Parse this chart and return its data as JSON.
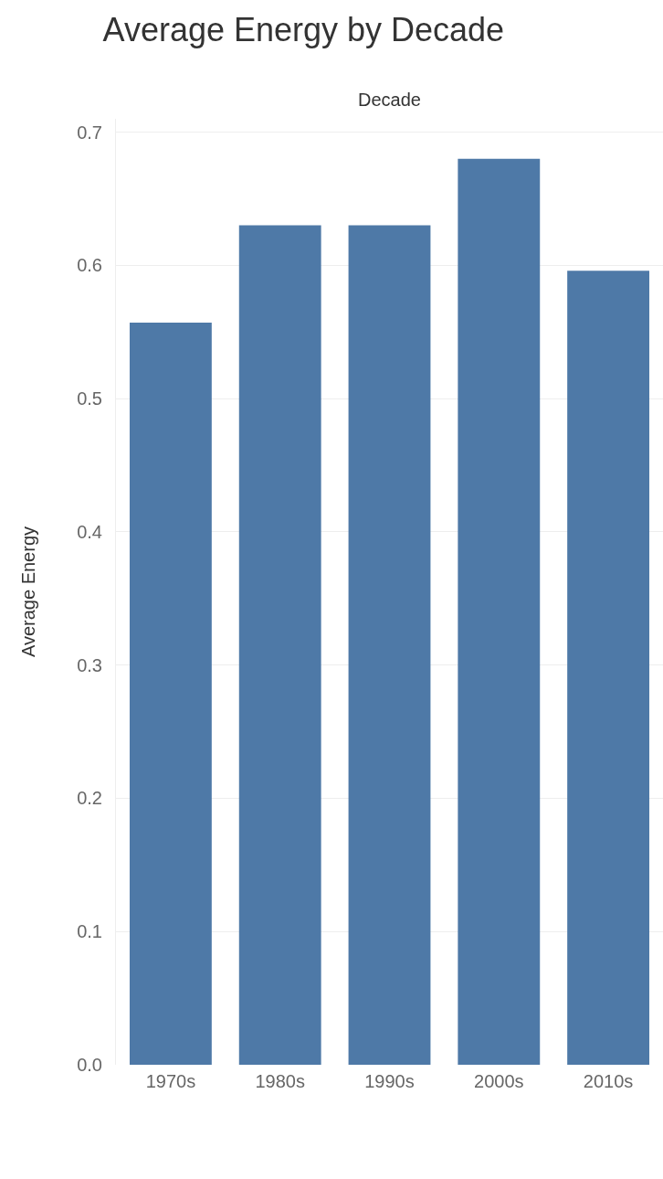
{
  "chart_data": {
    "type": "bar",
    "title": "Average Energy by Decade",
    "xlabel": "Decade",
    "ylabel": "Average Energy",
    "categories": [
      "1970s",
      "1980s",
      "1990s",
      "2000s",
      "2010s"
    ],
    "values": [
      0.557,
      0.63,
      0.63,
      0.68,
      0.596
    ],
    "color": "#4e79a7",
    "ylim": [
      0,
      0.71
    ],
    "yticks": [
      {
        "value": 0,
        "label": "0.0"
      },
      0.1,
      0.2,
      0.3,
      0.4,
      0.5,
      0.6,
      0.7
    ],
    "grid": "y"
  }
}
